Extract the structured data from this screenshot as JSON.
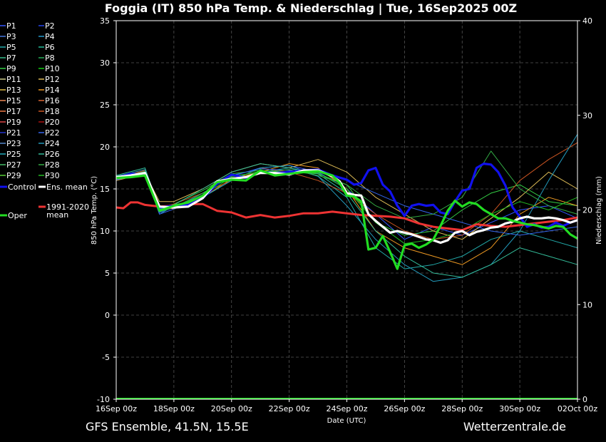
{
  "title": "Foggia  (IT)  850 hPa Temp. & Niederschlag | Tue, 16Sep2025 00Z",
  "footer_left": "GFS Ensemble, 41.5N, 15.5E",
  "footer_right": "Wetterzentrale.de",
  "chart_data": {
    "type": "line",
    "xlabel": "Date (UTC)",
    "ylabel": "850 hPa Temp. (°C)",
    "y2label": "Niederschlag (mm)",
    "ylim": [
      -10,
      35
    ],
    "y2lim": [
      0,
      40
    ],
    "x_range_hours": [
      0,
      384
    ],
    "x_ticks": [
      {
        "h": 0,
        "label": "16Sep 00z"
      },
      {
        "h": 48,
        "label": "18Sep 00z"
      },
      {
        "h": 96,
        "label": "20Sep 00z"
      },
      {
        "h": 144,
        "label": "22Sep 00z"
      },
      {
        "h": 192,
        "label": "24Sep 00z"
      },
      {
        "h": 240,
        "label": "26Sep 00z"
      },
      {
        "h": 288,
        "label": "28Sep 00z"
      },
      {
        "h": 336,
        "label": "30Sep 00z"
      },
      {
        "h": 384,
        "label": "02Oct 00z"
      }
    ],
    "y_ticks": [
      35,
      30,
      25,
      20,
      15,
      10,
      5,
      0,
      -5,
      -10
    ],
    "y2_ticks": [
      40,
      30,
      20,
      10,
      0
    ],
    "grid": true,
    "legend": [
      {
        "label": "P1",
        "color": "#3355ff"
      },
      {
        "label": "P2",
        "color": "#2244ee"
      },
      {
        "label": "P3",
        "color": "#4477dd"
      },
      {
        "label": "P4",
        "color": "#2299cc"
      },
      {
        "label": "P5",
        "color": "#22aaaa"
      },
      {
        "label": "P6",
        "color": "#22bb99"
      },
      {
        "label": "P7",
        "color": "#33bb88"
      },
      {
        "label": "P8",
        "color": "#22aa55"
      },
      {
        "label": "P9",
        "color": "#33cc44"
      },
      {
        "label": "P10",
        "color": "#11cc11"
      },
      {
        "label": "P11",
        "color": "#cccc88"
      },
      {
        "label": "P12",
        "color": "#ddbb55"
      },
      {
        "label": "P13",
        "color": "#ddbb44"
      },
      {
        "label": "P14",
        "color": "#ee9922"
      },
      {
        "label": "P15",
        "color": "#ee8855"
      },
      {
        "label": "P16",
        "color": "#dd6633"
      },
      {
        "label": "P17",
        "color": "#ee7744"
      },
      {
        "label": "P18",
        "color": "#cc5522"
      },
      {
        "label": "P19",
        "color": "#dd4444"
      },
      {
        "label": "P20",
        "color": "#aa1111"
      },
      {
        "label": "P21",
        "color": "#2233cc"
      },
      {
        "label": "P22",
        "color": "#3366ee"
      },
      {
        "label": "P23",
        "color": "#5588cc"
      },
      {
        "label": "P24",
        "color": "#2299bb"
      },
      {
        "label": "P25",
        "color": "#22aabb"
      },
      {
        "label": "P26",
        "color": "#33bb99"
      },
      {
        "label": "P27",
        "color": "#44bb66"
      },
      {
        "label": "P28",
        "color": "#33aa44"
      },
      {
        "label": "P29",
        "color": "#55cc33"
      },
      {
        "label": "P30",
        "color": "#22bb22"
      },
      {
        "label": "Control",
        "color": "#1111ee"
      },
      {
        "label": "Ens. mean",
        "color": "#ffffff"
      },
      {
        "label": "Oper",
        "color": "#22dd22"
      },
      {
        "label": "1991-2020\nmean",
        "color": "#ee3333"
      }
    ],
    "series": [
      {
        "name": "Control",
        "color": "#1111ee",
        "width": 3.2,
        "x_hours": [
          0,
          12,
          24,
          36,
          48,
          60,
          72,
          84,
          96,
          108,
          120,
          132,
          144,
          156,
          168,
          180,
          192,
          198,
          204,
          210,
          216,
          222,
          228,
          234,
          240,
          246,
          252,
          258,
          264,
          270,
          276,
          282,
          288,
          294,
          300,
          306,
          312,
          318,
          324,
          330,
          336,
          342,
          348,
          354,
          360,
          366,
          372,
          378,
          384
        ],
        "values": [
          16.3,
          16.8,
          16.7,
          12.8,
          13.0,
          13.1,
          13.9,
          15.6,
          16.7,
          16.3,
          17.0,
          16.9,
          17.0,
          17.2,
          17.3,
          16.6,
          16.1,
          15.5,
          15.7,
          17.2,
          17.5,
          15.5,
          14.7,
          13.0,
          11.8,
          13.0,
          13.2,
          13.0,
          13.1,
          12.2,
          12.0,
          13.5,
          14.8,
          15.0,
          17.5,
          18.0,
          17.9,
          17.0,
          15.4,
          12.8,
          11.7,
          10.5,
          10.8,
          10.4,
          10.5,
          11.0,
          10.6,
          11.0,
          11.3
        ]
      },
      {
        "name": "Ens. mean",
        "color": "#ffffff",
        "width": 3.2,
        "x_hours": [
          0,
          12,
          24,
          36,
          48,
          60,
          72,
          84,
          96,
          108,
          120,
          132,
          144,
          156,
          168,
          180,
          186,
          192,
          198,
          204,
          210,
          216,
          222,
          228,
          234,
          240,
          246,
          252,
          258,
          264,
          270,
          276,
          282,
          288,
          294,
          300,
          306,
          312,
          318,
          324,
          330,
          336,
          342,
          348,
          354,
          360,
          366,
          372,
          378,
          384
        ],
        "values": [
          16.4,
          16.6,
          16.9,
          12.9,
          12.8,
          12.9,
          13.9,
          15.9,
          16.2,
          16.4,
          16.9,
          16.9,
          16.7,
          17.2,
          17.2,
          16.5,
          15.9,
          14.5,
          14.3,
          14.2,
          12.0,
          11.2,
          10.5,
          9.8,
          10.0,
          9.8,
          9.6,
          9.3,
          9.0,
          8.9,
          8.6,
          8.9,
          9.8,
          10.0,
          9.5,
          9.9,
          10.1,
          10.4,
          10.5,
          10.9,
          11.1,
          11.5,
          11.7,
          11.5,
          11.5,
          11.6,
          11.5,
          11.3,
          11.0,
          11.3
        ]
      },
      {
        "name": "Oper",
        "color": "#22dd22",
        "width": 3.2,
        "x_hours": [
          0,
          12,
          24,
          36,
          48,
          60,
          72,
          84,
          96,
          108,
          120,
          132,
          144,
          156,
          168,
          180,
          186,
          192,
          198,
          204,
          210,
          216,
          222,
          228,
          234,
          240,
          246,
          252,
          258,
          264,
          270,
          276,
          282,
          288,
          294,
          300,
          306,
          312,
          318,
          324,
          330,
          336,
          342,
          348,
          354,
          360,
          366,
          372,
          378,
          384
        ],
        "values": [
          16.3,
          16.4,
          16.6,
          12.4,
          13.0,
          13.4,
          14.2,
          15.8,
          16.1,
          16.0,
          17.2,
          16.6,
          16.8,
          17.0,
          17.1,
          16.6,
          15.7,
          14.2,
          14.1,
          13.5,
          7.8,
          8.0,
          9.4,
          7.5,
          5.5,
          8.3,
          8.5,
          8.0,
          8.4,
          9.0,
          10.6,
          12.4,
          13.6,
          12.9,
          13.4,
          13.2,
          12.5,
          12.0,
          11.5,
          11.5,
          11.2,
          11.0,
          10.8,
          10.7,
          10.5,
          10.3,
          10.6,
          10.5,
          9.6,
          9.1
        ]
      },
      {
        "name": "1991-2020\nmean",
        "color": "#ee3333",
        "width": 3.0,
        "x_hours": [
          0,
          6,
          12,
          18,
          24,
          36,
          48,
          60,
          72,
          84,
          96,
          108,
          120,
          132,
          144,
          156,
          168,
          180,
          192,
          204,
          216,
          228,
          240,
          252,
          264,
          276,
          288,
          300,
          312,
          324,
          336,
          348,
          360,
          372,
          384
        ],
        "values": [
          12.8,
          12.7,
          13.4,
          13.4,
          13.1,
          12.9,
          13.0,
          13.2,
          13.2,
          12.4,
          12.2,
          11.6,
          11.9,
          11.6,
          11.8,
          12.1,
          12.1,
          12.3,
          12.1,
          11.9,
          11.8,
          11.7,
          11.5,
          10.9,
          10.5,
          10.3,
          10.1,
          10.8,
          10.6,
          10.5,
          10.7,
          10.9,
          11.1,
          11.3,
          11.6
        ]
      },
      {
        "name": "P1",
        "color": "#3355ff",
        "width": 1,
        "x_hours": [
          0,
          24,
          36,
          48,
          72,
          96,
          120,
          144,
          168,
          192,
          216,
          240,
          264,
          288,
          312,
          336,
          360,
          384
        ],
        "values": [
          16.0,
          17.0,
          12.2,
          12.8,
          14.5,
          16.5,
          17.5,
          17.8,
          17.0,
          15.0,
          12.0,
          9.0,
          10.5,
          9.5,
          11.0,
          12.5,
          13.0,
          11.5
        ]
      },
      {
        "name": "P5",
        "color": "#22aaaa",
        "width": 1,
        "x_hours": [
          0,
          24,
          36,
          48,
          72,
          96,
          120,
          144,
          168,
          192,
          216,
          240,
          264,
          288,
          312,
          336,
          360,
          384
        ],
        "values": [
          16.5,
          17.0,
          12.0,
          13.0,
          14.0,
          16.0,
          17.0,
          17.5,
          16.5,
          14.0,
          8.0,
          5.5,
          6.0,
          7.0,
          9.0,
          10.0,
          9.0,
          8.0
        ]
      },
      {
        "name": "P9",
        "color": "#33cc44",
        "width": 1,
        "x_hours": [
          0,
          24,
          36,
          48,
          72,
          96,
          120,
          144,
          168,
          192,
          216,
          240,
          264,
          288,
          312,
          336,
          360,
          384
        ],
        "values": [
          16.4,
          16.5,
          12.5,
          13.2,
          14.8,
          16.8,
          17.2,
          17.0,
          16.8,
          15.5,
          11.0,
          9.5,
          10.0,
          12.5,
          14.5,
          15.5,
          13.5,
          13.0
        ]
      },
      {
        "name": "P12",
        "color": "#ddbb55",
        "width": 1,
        "x_hours": [
          0,
          24,
          36,
          48,
          72,
          96,
          120,
          144,
          168,
          192,
          216,
          240,
          264,
          288,
          312,
          336,
          360,
          384
        ],
        "values": [
          16.0,
          16.8,
          13.5,
          13.5,
          15.0,
          17.0,
          18.0,
          17.5,
          18.5,
          17.0,
          14.0,
          12.0,
          10.0,
          9.0,
          11.5,
          14.0,
          17.0,
          15.0
        ]
      },
      {
        "name": "P14",
        "color": "#ee9922",
        "width": 1,
        "x_hours": [
          0,
          24,
          36,
          48,
          72,
          96,
          120,
          144,
          168,
          192,
          216,
          240,
          264,
          288,
          312,
          336,
          360,
          384
        ],
        "values": [
          16.2,
          16.6,
          13.0,
          12.6,
          14.0,
          16.2,
          17.0,
          18.0,
          17.5,
          15.0,
          10.0,
          8.0,
          7.0,
          6.0,
          8.0,
          12.0,
          14.0,
          13.0
        ]
      },
      {
        "name": "P18",
        "color": "#cc5522",
        "width": 1,
        "x_hours": [
          0,
          24,
          36,
          48,
          72,
          96,
          120,
          144,
          168,
          192,
          216,
          240,
          264,
          288,
          312,
          336,
          360,
          384
        ],
        "values": [
          16.3,
          17.2,
          12.8,
          13.2,
          14.5,
          16.0,
          17.5,
          17.0,
          16.0,
          14.5,
          12.0,
          10.0,
          9.0,
          9.5,
          12.0,
          16.0,
          18.5,
          20.5
        ]
      },
      {
        "name": "P22",
        "color": "#3366ee",
        "width": 1,
        "x_hours": [
          0,
          24,
          36,
          48,
          72,
          96,
          120,
          144,
          168,
          192,
          216,
          240,
          264,
          288,
          312,
          336,
          360,
          384
        ],
        "values": [
          16.1,
          16.9,
          12.0,
          12.6,
          14.5,
          16.6,
          17.4,
          17.2,
          17.0,
          16.0,
          14.5,
          13.0,
          12.0,
          11.0,
          10.0,
          9.5,
          10.0,
          10.5
        ]
      },
      {
        "name": "P24",
        "color": "#2299bb",
        "width": 1,
        "x_hours": [
          0,
          24,
          36,
          48,
          72,
          96,
          120,
          144,
          168,
          192,
          216,
          240,
          264,
          288,
          312,
          336,
          360,
          384
        ],
        "values": [
          16.5,
          17.3,
          12.4,
          12.9,
          14.0,
          16.0,
          17.5,
          17.8,
          16.5,
          13.0,
          9.0,
          6.0,
          4.0,
          4.5,
          6.0,
          10.0,
          16.0,
          21.5
        ]
      },
      {
        "name": "P26",
        "color": "#33bb99",
        "width": 1,
        "x_hours": [
          0,
          24,
          36,
          48,
          72,
          96,
          120,
          144,
          168,
          192,
          216,
          240,
          264,
          288,
          312,
          336,
          360,
          384
        ],
        "values": [
          16.6,
          17.5,
          12.6,
          13.1,
          15.0,
          17.0,
          18.0,
          17.5,
          16.8,
          14.5,
          10.0,
          7.0,
          5.0,
          4.5,
          6.0,
          8.0,
          7.0,
          6.0
        ]
      },
      {
        "name": "P28",
        "color": "#33aa44",
        "width": 1,
        "x_hours": [
          0,
          24,
          36,
          48,
          72,
          96,
          120,
          144,
          168,
          192,
          216,
          240,
          264,
          288,
          312,
          336,
          360,
          384
        ],
        "values": [
          16.2,
          17.1,
          12.3,
          12.8,
          14.5,
          16.5,
          17.0,
          17.3,
          16.6,
          15.5,
          13.0,
          11.5,
          12.0,
          14.0,
          19.5,
          15.0,
          13.0,
          12.0
        ]
      },
      {
        "name": "P30",
        "color": "#22bb22",
        "width": 1,
        "x_hours": [
          0,
          24,
          36,
          48,
          72,
          96,
          120,
          144,
          168,
          192,
          216,
          240,
          264,
          288,
          312,
          336,
          360,
          384
        ],
        "values": [
          16.4,
          16.7,
          12.7,
          12.9,
          14.2,
          16.4,
          17.1,
          17.0,
          16.9,
          15.0,
          11.0,
          8.5,
          9.0,
          10.0,
          12.0,
          13.5,
          12.5,
          14.0
        ]
      }
    ]
  }
}
